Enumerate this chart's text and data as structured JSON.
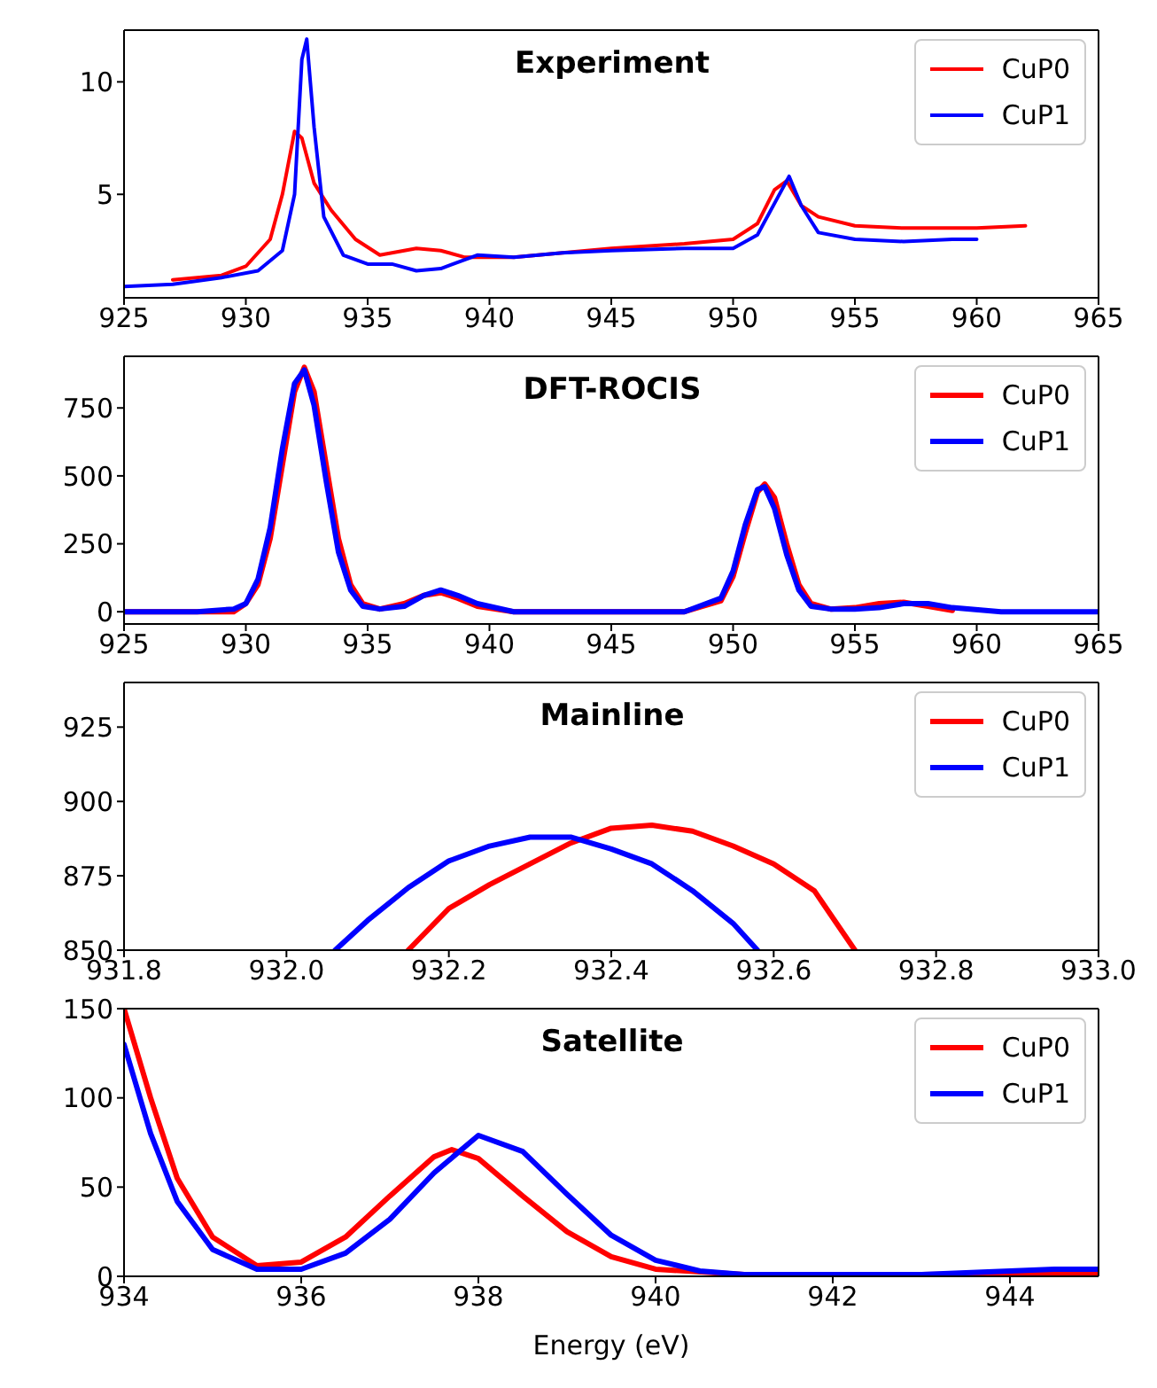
{
  "chart_data": [
    {
      "type": "line",
      "title": "Experiment",
      "xlim": [
        925,
        965
      ],
      "xticks": [
        925,
        930,
        935,
        940,
        945,
        950,
        955,
        960,
        965
      ],
      "ylim": [
        0.4,
        12.3
      ],
      "yticks": [
        5,
        10
      ],
      "legend": "top right",
      "series": [
        {
          "name": "CuP0",
          "color": "#ff0000",
          "x": [
            927,
            929,
            930,
            931,
            931.5,
            932,
            932.3,
            932.8,
            933.5,
            934.5,
            935.5,
            937,
            938,
            939,
            941,
            945,
            948,
            950,
            951,
            951.7,
            952.2,
            952.8,
            953.5,
            955,
            957,
            960,
            962
          ],
          "values": [
            1.2,
            1.4,
            1.8,
            3,
            5,
            7.8,
            7.5,
            5.5,
            4.3,
            3,
            2.3,
            2.6,
            2.5,
            2.2,
            2.2,
            2.6,
            2.8,
            3.0,
            3.7,
            5.2,
            5.6,
            4.5,
            4.0,
            3.6,
            3.5,
            3.5,
            3.6
          ]
        },
        {
          "name": "CuP1",
          "color": "#0000ff",
          "x": [
            925,
            927,
            929,
            930.5,
            931.5,
            932,
            932.3,
            932.5,
            932.8,
            933.2,
            934,
            935,
            936,
            937,
            938,
            939.5,
            941,
            943,
            945,
            948,
            950,
            951,
            951.8,
            952.3,
            952.8,
            953.5,
            955,
            957,
            959,
            960
          ],
          "values": [
            0.9,
            1.0,
            1.3,
            1.6,
            2.5,
            5,
            11,
            11.9,
            8,
            4,
            2.3,
            1.9,
            1.9,
            1.6,
            1.7,
            2.3,
            2.2,
            2.4,
            2.5,
            2.6,
            2.6,
            3.2,
            4.8,
            5.8,
            4.5,
            3.3,
            3.0,
            2.9,
            3.0,
            3.0
          ]
        }
      ]
    },
    {
      "type": "line",
      "title": "DFT-ROCIS",
      "xlim": [
        925,
        965
      ],
      "xticks": [
        925,
        930,
        935,
        940,
        945,
        950,
        955,
        960,
        965
      ],
      "ylim": [
        -45,
        940
      ],
      "yticks": [
        0,
        250,
        500,
        750
      ],
      "legend": "top right",
      "x": [
        925,
        928,
        929.5,
        930,
        930.5,
        931,
        931.5,
        932,
        932.4,
        932.8,
        933.3,
        933.8,
        934.3,
        934.8,
        935.5,
        936.5,
        937.3,
        938,
        938.7,
        939.5,
        941,
        945,
        948,
        949.5,
        950,
        950.5,
        951,
        951.3,
        951.7,
        952.2,
        952.7,
        953.2,
        954,
        955,
        956,
        957,
        958,
        959,
        961,
        965
      ],
      "series": [
        {
          "name": "CuP0",
          "color": "#ff0000",
          "values": [
            0,
            0,
            0,
            30,
            100,
            270,
            540,
            810,
            900,
            810,
            540,
            270,
            100,
            30,
            10,
            30,
            60,
            70,
            50,
            20,
            0,
            0,
            0,
            40,
            130,
            290,
            440,
            470,
            420,
            250,
            100,
            30,
            10,
            15,
            30,
            35,
            20,
            5,
            null,
            null
          ]
        },
        {
          "name": "CuP1",
          "color": "#0000ff",
          "values": [
            0,
            0,
            10,
            30,
            120,
            310,
            600,
            840,
            890,
            760,
            480,
            220,
            80,
            20,
            10,
            20,
            60,
            80,
            60,
            30,
            0,
            0,
            0,
            50,
            150,
            320,
            450,
            460,
            380,
            210,
            80,
            20,
            10,
            10,
            15,
            30,
            30,
            15,
            0,
            0
          ]
        }
      ]
    },
    {
      "type": "line",
      "title": "Mainline",
      "xlim": [
        931.8,
        933.0
      ],
      "xticks": [
        {
          "value": 931.8,
          "label": "931.8"
        },
        {
          "value": 932.0,
          "label": "932.0"
        },
        {
          "value": 932.2,
          "label": "932.2"
        },
        {
          "value": 932.4,
          "label": "932.4"
        },
        {
          "value": 932.6,
          "label": "932.6"
        },
        {
          "value": 932.8,
          "label": "932.8"
        },
        {
          "value": 933.0,
          "label": "933.0"
        }
      ],
      "ylim": [
        850,
        940
      ],
      "yticks": [
        850,
        875,
        900,
        925
      ],
      "legend": "top right",
      "series": [
        {
          "name": "CuP0",
          "color": "#ff0000",
          "x": [
            932.15,
            932.2,
            932.25,
            932.3,
            932.35,
            932.4,
            932.45,
            932.5,
            932.55,
            932.6,
            932.65,
            932.675,
            932.7
          ],
          "values": [
            850,
            864,
            872,
            879,
            886,
            891,
            892,
            890,
            885,
            879,
            870,
            860,
            850
          ]
        },
        {
          "name": "CuP1",
          "color": "#0000ff",
          "x": [
            932.06,
            932.1,
            932.15,
            932.2,
            932.25,
            932.3,
            932.35,
            932.4,
            932.45,
            932.5,
            932.55,
            932.58
          ],
          "values": [
            850,
            860,
            871,
            880,
            885,
            888,
            888,
            884,
            879,
            870,
            859,
            850
          ]
        }
      ]
    },
    {
      "type": "line",
      "title": "Satellite",
      "xlabel": "Energy (eV)",
      "xlim": [
        934,
        945
      ],
      "xticks": [
        934,
        936,
        938,
        940,
        942,
        944
      ],
      "ylim": [
        0,
        150
      ],
      "yticks": [
        0,
        50,
        100,
        150
      ],
      "legend": "top right",
      "series": [
        {
          "name": "CuP0",
          "color": "#ff0000",
          "x": [
            934,
            934.3,
            934.6,
            935,
            935.5,
            936,
            936.5,
            937,
            937.5,
            937.7,
            938,
            938.5,
            939,
            939.5,
            940,
            941,
            943,
            945
          ],
          "values": [
            150,
            100,
            55,
            22,
            6,
            8,
            22,
            45,
            67,
            71,
            66,
            45,
            25,
            11,
            4,
            1,
            1,
            2
          ]
        },
        {
          "name": "CuP1",
          "color": "#0000ff",
          "x": [
            934,
            934.3,
            934.6,
            935,
            935.5,
            936,
            936.5,
            937,
            937.5,
            938,
            938.5,
            939,
            939.5,
            940,
            940.5,
            941,
            943,
            944.5,
            945
          ],
          "values": [
            130,
            80,
            42,
            15,
            4,
            4,
            13,
            32,
            58,
            79,
            70,
            46,
            23,
            9,
            3,
            1,
            1,
            4,
            4
          ]
        }
      ]
    }
  ]
}
